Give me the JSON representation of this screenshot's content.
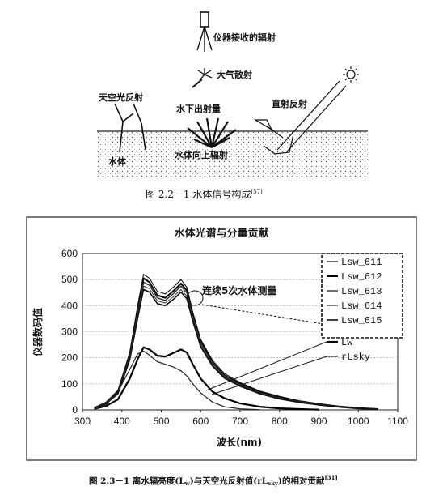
{
  "figure1": {
    "labels": {
      "instrument": "仪器接收的辐射",
      "atmosphere": "大气散射",
      "sky": "天空光反射",
      "underwater": "水下出射量",
      "direct": "直射反射",
      "water": "水体",
      "upwelling": "水体向上辐射"
    },
    "caption": {
      "prefix": "图  2.2－1 水体信号构成",
      "ref": "[57]"
    }
  },
  "figure2": {
    "caption": {
      "prefix": "图  2.3－1 离水辐亮度(L",
      "sub1": "w",
      "mid": ")与天空光反射值(rL",
      "sub2": "sky",
      "suffix": ")的相对贡献",
      "ref": "[31]"
    },
    "annotation": "连续5次水体测量"
  },
  "chart_data": {
    "type": "line",
    "title": "水体光谱与分量贡献",
    "xlabel": "波长(nm)",
    "ylabel": "仪器数码值",
    "xlim": [
      300,
      1100
    ],
    "ylim": [
      0,
      600
    ],
    "x_ticks": [
      "300",
      "400",
      "500",
      "600",
      "700",
      "800",
      "900",
      "1000",
      "1100"
    ],
    "y_ticks": [
      "0",
      "100",
      "200",
      "300",
      "400",
      "500",
      "600"
    ],
    "grid": "horizontal",
    "series": [
      {
        "name": "Lsw_611",
        "x": [
          330,
          360,
          390,
          420,
          440,
          455,
          470,
          490,
          510,
          530,
          550,
          565,
          580,
          600,
          630,
          660,
          700,
          750,
          800,
          850,
          900,
          950,
          1000,
          1050
        ],
        "y": [
          8,
          30,
          75,
          220,
          400,
          520,
          505,
          455,
          445,
          470,
          500,
          470,
          375,
          270,
          190,
          140,
          105,
          72,
          52,
          35,
          24,
          14,
          8,
          4
        ]
      },
      {
        "name": "Lsw_612",
        "x": [
          330,
          360,
          390,
          420,
          440,
          455,
          470,
          490,
          510,
          530,
          550,
          565,
          580,
          600,
          630,
          660,
          700,
          750,
          800,
          850,
          900,
          950,
          1000,
          1050
        ],
        "y": [
          7,
          28,
          70,
          210,
          385,
          505,
          490,
          440,
          430,
          455,
          485,
          458,
          365,
          262,
          182,
          133,
          100,
          68,
          48,
          33,
          22,
          13,
          7,
          3
        ]
      },
      {
        "name": "Lsw_613",
        "x": [
          330,
          360,
          390,
          420,
          440,
          455,
          470,
          490,
          510,
          530,
          550,
          565,
          580,
          600,
          630,
          660,
          700,
          750,
          800,
          850,
          900,
          950,
          1000,
          1050
        ],
        "y": [
          7,
          27,
          68,
          205,
          375,
          490,
          478,
          430,
          420,
          445,
          475,
          448,
          358,
          256,
          178,
          130,
          97,
          66,
          46,
          32,
          21,
          12,
          6,
          3
        ]
      },
      {
        "name": "Lsw_614",
        "x": [
          330,
          360,
          390,
          420,
          440,
          455,
          470,
          490,
          510,
          530,
          550,
          565,
          580,
          600,
          630,
          660,
          700,
          750,
          800,
          850,
          900,
          950,
          1000,
          1050
        ],
        "y": [
          6,
          25,
          64,
          198,
          362,
          475,
          465,
          418,
          410,
          433,
          462,
          436,
          348,
          248,
          172,
          126,
          94,
          64,
          44,
          30,
          20,
          11,
          6,
          3
        ]
      },
      {
        "name": "Lsw_615",
        "x": [
          330,
          360,
          390,
          420,
          440,
          455,
          470,
          490,
          510,
          530,
          550,
          565,
          580,
          600,
          630,
          660,
          700,
          750,
          800,
          850,
          900,
          950,
          1000,
          1050
        ],
        "y": [
          6,
          24,
          62,
          192,
          352,
          462,
          452,
          408,
          400,
          423,
          452,
          426,
          340,
          242,
          168,
          122,
          91,
          62,
          42,
          29,
          19,
          11,
          5,
          2
        ]
      },
      {
        "name": "Lw",
        "x": [
          330,
          360,
          390,
          420,
          440,
          455,
          470,
          490,
          510,
          530,
          550,
          565,
          580,
          600,
          630,
          660,
          700,
          750,
          800,
          850,
          900
        ],
        "y": [
          4,
          15,
          40,
          120,
          195,
          240,
          232,
          208,
          205,
          218,
          232,
          220,
          175,
          120,
          70,
          45,
          25,
          12,
          6,
          3,
          1
        ]
      },
      {
        "name": "rLsky",
        "x": [
          330,
          360,
          390,
          420,
          440,
          455,
          470,
          490,
          510,
          530,
          550,
          565,
          580,
          600,
          630,
          660,
          700,
          750
        ],
        "y": [
          3,
          20,
          70,
          155,
          215,
          225,
          210,
          185,
          175,
          165,
          150,
          130,
          100,
          65,
          30,
          12,
          4,
          1
        ]
      }
    ],
    "legend": "right"
  }
}
